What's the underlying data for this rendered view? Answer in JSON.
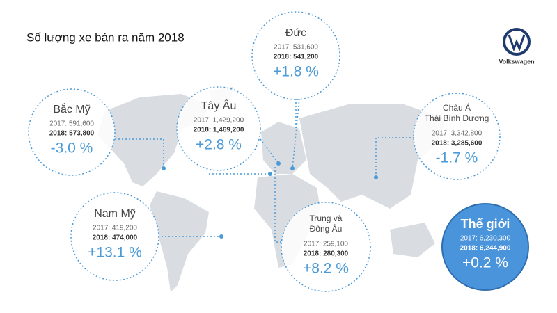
{
  "title": "Số lượng xe bán ra năm 2018",
  "logo": "Volkswagen",
  "regions": [
    {
      "name_lines": [
        "Đức"
      ],
      "line2017": "2017: 531,600",
      "line2018": "2018: 541,200",
      "change": "+1.8 %"
    },
    {
      "name_lines": [
        "Tây Âu"
      ],
      "line2017": "2017: 1,429,200",
      "line2018": "2018: 1,469,200",
      "change": "+2.8 %"
    },
    {
      "name_lines": [
        "Bắc Mỹ"
      ],
      "line2017": "2017: 591,600",
      "line2018": "2018: 573,800",
      "change": "-3.0 %"
    },
    {
      "name_lines": [
        "Châu Á",
        "Thái Bình Dương"
      ],
      "line2017": "2017: 3,342,800",
      "line2018": "2018: 3,285,600",
      "change": "-1.7 %"
    },
    {
      "name_lines": [
        "Nam Mỹ"
      ],
      "line2017": "2017: 419,200",
      "line2018": "2018: 474,000",
      "change": "+13.1 %"
    },
    {
      "name_lines": [
        "Trung và",
        "Đông Âu"
      ],
      "line2017": "2017: 259,100",
      "line2018": "2018: 280,300",
      "change": "+8.2 %"
    },
    {
      "name_lines": [
        "Thế giới"
      ],
      "line2017": "2017: 6,230,300",
      "line2018": "2018: 6,244,900",
      "change": "+0.2 %"
    }
  ]
}
